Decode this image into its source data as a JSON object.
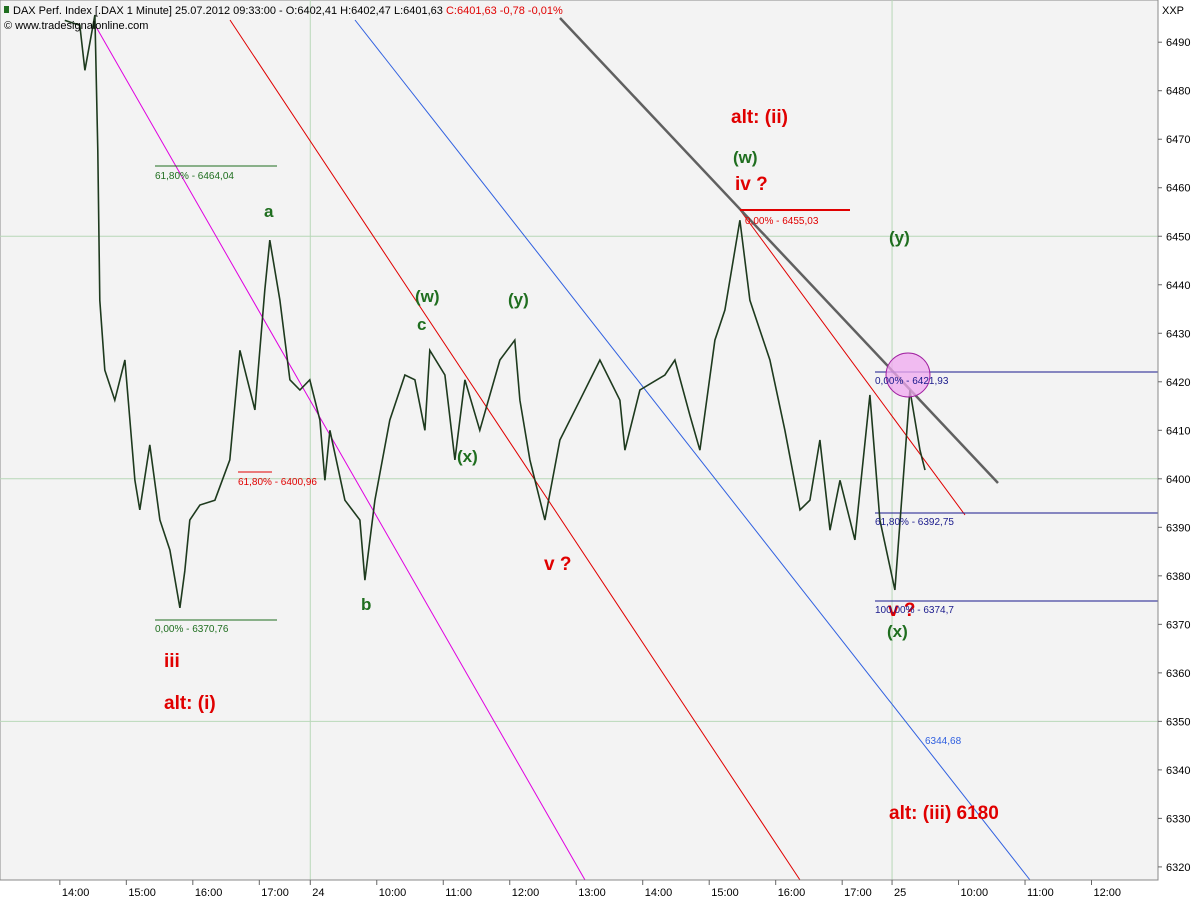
{
  "chart_data": {
    "type": "line",
    "header": "DAX Perf. Index [.DAX 1 Minute] 25.07.2012 09:33:00 - O:6402,41 H:6402,47 L:6401,63",
    "header_change": "C:6401,63 -0,78 -0,01%",
    "copyright": "© www.tradesignalonline.com",
    "corner": "XXP",
    "x": [
      4.5,
      18,
      22.6,
      31.6,
      34.3,
      36.1,
      40.6,
      49.6,
      58.7,
      67.7,
      72.2,
      81.2,
      90.3,
      99.3,
      108.3,
      112.8,
      117.3,
      126.4,
      139.9,
      153.4,
      162.5,
      176,
      185,
      189.5,
      198.6,
      207.6,
      216.6,
      225.6,
      234.7,
      239.2,
      243.7,
      257.2,
      270.8,
      275.3,
      284.3,
      297.8,
      311.4,
      320.4,
      329.4,
      333.9,
      347.5,
      356.5,
      365.5,
      379,
      397.1,
      410.6,
      415.2,
      424.2,
      437.7,
      451.3,
      469.3,
      487.4,
      505.4,
      509.9,
      523.5,
      546,
      555,
      568.6,
      577.6,
      591.1,
      600.2,
      613.7,
      622.7,
      640.8,
      654.3,
      667.9,
      676.9,
      685.9,
      695,
      704,
      717.5,
      731,
      740,
      753.6,
      767.1,
      776.2,
      780.7
    ],
    "series": [
      {
        "name": "DAX",
        "color": "#1e3a1e",
        "values": [
          6494.5,
          6493.5,
          6484.2,
          6495.6,
          6467.7,
          6436.8,
          6422.4,
          6416.2,
          6424.5,
          6399.7,
          6393.6,
          6407,
          6391.5,
          6385.3,
          6373.4,
          6381,
          6391.5,
          6394.6,
          6395.6,
          6403.9,
          6426.5,
          6414.2,
          6438.9,
          6449.2,
          6436.8,
          6420.4,
          6418.3,
          6420.4,
          6412.1,
          6399.7,
          6410,
          6395.6,
          6391.5,
          6379.1,
          6395.6,
          6412.1,
          6421.4,
          6420.4,
          6410,
          6426.5,
          6421.4,
          6403.9,
          6420.4,
          6410,
          6424.5,
          6428.6,
          6416.2,
          6403.9,
          6391.5,
          6408,
          6416.2,
          6424.5,
          6416.2,
          6405.9,
          6418.3,
          6421.4,
          6424.5,
          6413.1,
          6405.9,
          6428.6,
          6434.8,
          6453.3,
          6436.8,
          6424.5,
          6410,
          6393.6,
          6395.6,
          6408,
          6389.4,
          6399.7,
          6387.4,
          6417.3,
          6391.5,
          6377.1,
          6418.3,
          6405.9,
          6401.8
        ]
      }
    ],
    "xlim": [
      -54,
      991
    ],
    "xticks": [
      {
        "value": 0,
        "label": "14:00"
      },
      {
        "value": 60,
        "label": "15:00"
      },
      {
        "value": 120,
        "label": "16:00"
      },
      {
        "value": 180,
        "label": "17:00"
      },
      {
        "value": 226,
        "label": "24"
      },
      {
        "value": 286,
        "label": "10:00"
      },
      {
        "value": 346,
        "label": "11:00"
      },
      {
        "value": 406,
        "label": "12:00"
      },
      {
        "value": 466,
        "label": "13:00"
      },
      {
        "value": 526,
        "label": "14:00"
      },
      {
        "value": 586,
        "label": "15:00"
      },
      {
        "value": 646,
        "label": "16:00"
      },
      {
        "value": 706,
        "label": "17:00"
      },
      {
        "value": 751,
        "label": "25"
      },
      {
        "value": 811,
        "label": "10:00"
      },
      {
        "value": 871,
        "label": "11:00"
      },
      {
        "value": 931,
        "label": "12:00"
      }
    ],
    "ylim": [
      6317.3,
      6498.7
    ],
    "yticks": [
      6320,
      6330,
      6340,
      6350,
      6360,
      6370,
      6380,
      6390,
      6400,
      6410,
      6420,
      6430,
      6440,
      6450,
      6460,
      6470,
      6480,
      6490
    ],
    "annotations": [
      "alt: (ii)",
      "(w)",
      "iv ?",
      "a",
      "(w)",
      "c",
      "(y)",
      "(x)",
      "(y)",
      "v ?",
      "b",
      "iii",
      "alt: (i)",
      "(x)",
      "v ?",
      "alt: (iii) 6180",
      "61,80% - 6464,04",
      "0,00% - 6370,76",
      "61,80% - 6400,96",
      "0,00% - 6455,03",
      "0,00% - 6421,93",
      "61,80% - 6392,75",
      "100,00% - 6374,7",
      "6344,68"
    ]
  }
}
